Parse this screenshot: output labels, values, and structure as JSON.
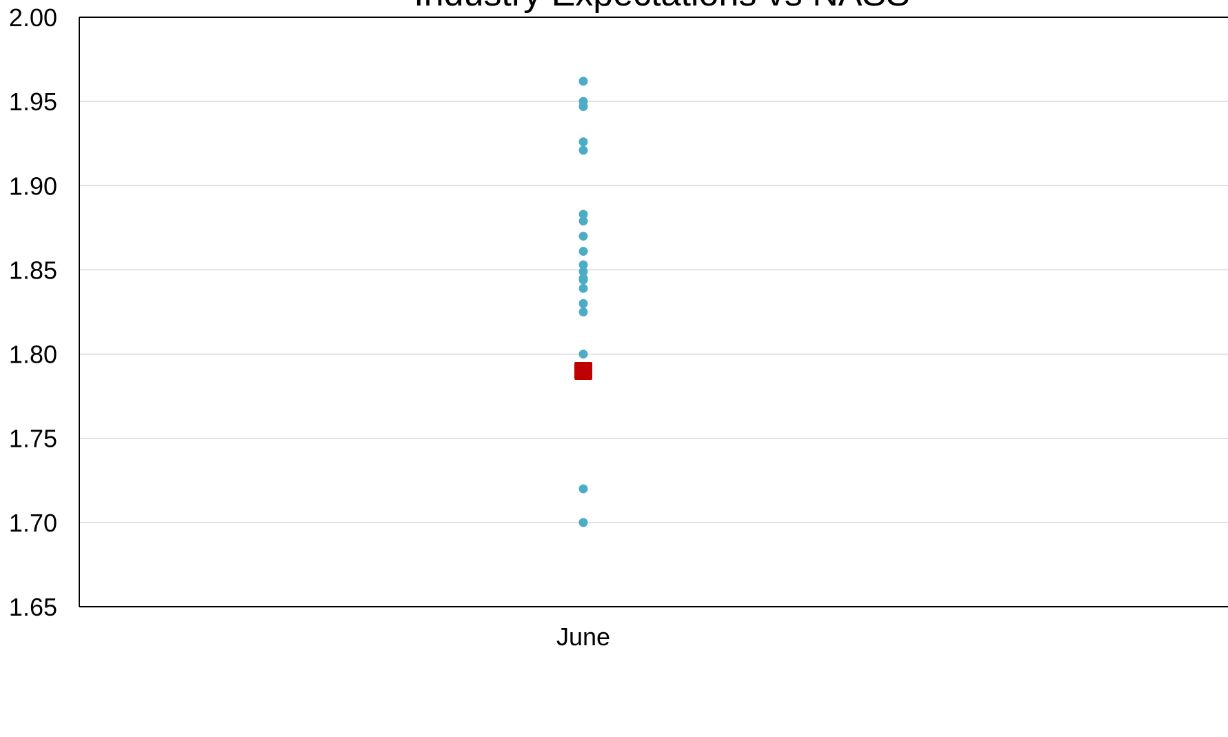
{
  "chart_data": {
    "type": "scatter",
    "title": "Industry Expectations vs NASS",
    "xlabel": "",
    "ylabel": "",
    "categories": [
      "June"
    ],
    "ylim": [
      1.65,
      2.0
    ],
    "yticks": [
      "1.65",
      "1.70",
      "1.75",
      "1.80",
      "1.85",
      "1.90",
      "1.95",
      "2.00"
    ],
    "grid": true,
    "legend": "none",
    "series": [
      {
        "color": "#4bacc6",
        "marker": "circle",
        "points": [
          {
            "x": "June",
            "y": 1.962
          },
          {
            "x": "June",
            "y": 1.95
          },
          {
            "x": "June",
            "y": 1.947
          },
          {
            "x": "June",
            "y": 1.926
          },
          {
            "x": "June",
            "y": 1.921
          },
          {
            "x": "June",
            "y": 1.883
          },
          {
            "x": "June",
            "y": 1.879
          },
          {
            "x": "June",
            "y": 1.87
          },
          {
            "x": "June",
            "y": 1.861
          },
          {
            "x": "June",
            "y": 1.853
          },
          {
            "x": "June",
            "y": 1.849
          },
          {
            "x": "June",
            "y": 1.845
          },
          {
            "x": "June",
            "y": 1.844
          },
          {
            "x": "June",
            "y": 1.839
          },
          {
            "x": "June",
            "y": 1.83
          },
          {
            "x": "June",
            "y": 1.825
          },
          {
            "x": "June",
            "y": 1.8
          },
          {
            "x": "June",
            "y": 1.72
          },
          {
            "x": "June",
            "y": 1.7
          }
        ]
      },
      {
        "color": "#c00000",
        "marker": "square",
        "points": [
          {
            "x": "June",
            "y": 1.79
          }
        ]
      }
    ]
  }
}
